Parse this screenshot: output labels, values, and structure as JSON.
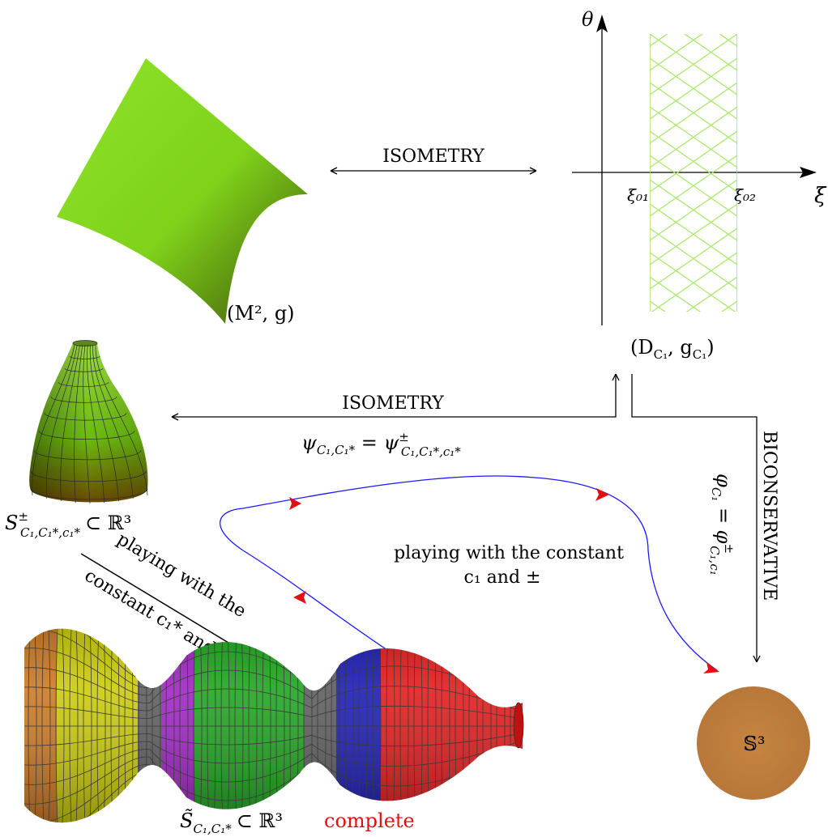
{
  "labels": {
    "top_isometry": "ISOMETRY",
    "mid_isometry": "ISOMETRY",
    "biconservative": "BICONSERVATIVE",
    "m2g": "(M², g)",
    "dc1": "(D",
    "dc1_sub": "C₁",
    "dc1_g": ", g",
    "dc1_g_sub": "C₁",
    "dc1_close": ")",
    "theta": "θ",
    "xi": "ξ",
    "xi01": "ξ₀₁",
    "xi02": "ξ₀₂",
    "psi_lhs": "ψ",
    "psi_lhs_sub": "C₁,C₁*",
    "psi_eq": " = ψ",
    "psi_rhs_sup": "±",
    "psi_rhs_sub": "C₁,C₁*,c₁*",
    "phi": "φ",
    "phi_sub": "C₁",
    "phi_eq": " = φ",
    "phi_rhs_sup": "±",
    "phi_rhs_sub": "C₁,c₁",
    "s_main": "S",
    "s_sup": "±",
    "s_sub": "C₁,C₁*,c₁*",
    "s_tail": "⊂ ℝ³",
    "playing_c1star_line1": "playing with the",
    "playing_c1star_line2": "constant c₁* and ±",
    "playing_c1_line1": "playing with the constant",
    "playing_c1_line2": "c₁ and ±",
    "stilde_main": "S̃",
    "stilde_sub": "C₁,C₁*",
    "stilde_tail": "⊂ ℝ³",
    "complete": "complete",
    "sphere": "𝕊³"
  },
  "colors": {
    "surface_green": "#7fd11a",
    "surface_dark": "#6b4a00",
    "grid_green": "#a8e86a",
    "curve_blue": "#1a1aff",
    "arrow_red": "#e01010",
    "sphere_brown": "#c0803f",
    "complete_red": "#e01010",
    "yellow_band": "#e6e600",
    "purple_band": "#9a1ac0",
    "green_band": "#14a014",
    "blue_band": "#1010b0",
    "red_band": "#e01010"
  }
}
